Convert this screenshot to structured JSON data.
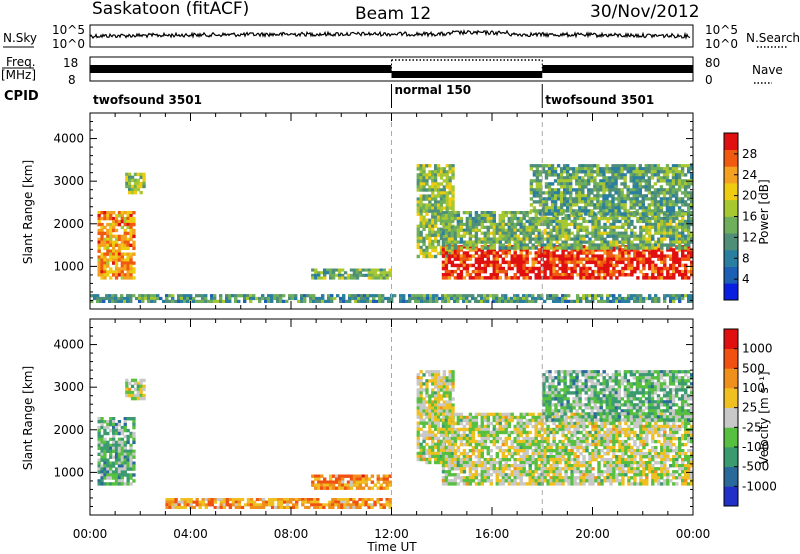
{
  "header": {
    "station": "Saskatoon (fitACF)",
    "beam": "Beam 12",
    "date": "30/Nov/2012"
  },
  "strip_labels": {
    "nsky": "N.Sky",
    "nsearch": "N.Search",
    "freq_top": "Freq.",
    "freq_unit": "[MHz]",
    "nave": "Nave",
    "cpid": "CPID",
    "noise_tick_high": "10^5",
    "noise_tick_low": "10^0",
    "freq_tick_high": "18",
    "freq_tick_low": "8",
    "nave_tick_high": "80",
    "nave_tick_low": "0"
  },
  "cpid_segments": [
    {
      "label": "twofsound 3501",
      "start_hour": 0,
      "end_hour": 12
    },
    {
      "label": "normal 150",
      "start_hour": 12,
      "end_hour": 18
    },
    {
      "label": "twofsound 3501",
      "start_hour": 18,
      "end_hour": 24
    }
  ],
  "chart_data": [
    {
      "type": "heatmap",
      "name": "power",
      "xlabel": "Time UT",
      "ylabel": "Slant Range [km]",
      "xlim": [
        0,
        24
      ],
      "ylim": [
        0,
        4600
      ],
      "x_ticks": [
        "00:00",
        "04:00",
        "08:00",
        "12:00",
        "16:00",
        "20:00",
        "00:00"
      ],
      "y_ticks": [
        1000,
        2000,
        3000,
        4000
      ],
      "colorbar": {
        "label": "Power [dB]",
        "ticks": [
          "4",
          "8",
          "12",
          "16",
          "20",
          "24",
          "28"
        ],
        "colors": [
          "#0a1ee0",
          "#1c5fb4",
          "#2a7fa0",
          "#4f8f78",
          "#6fae5a",
          "#a8c832",
          "#f0cc10",
          "#f4a020",
          "#f05a10",
          "#e01010"
        ]
      },
      "regions": [
        {
          "t0": 0.3,
          "t1": 1.8,
          "r0": 700,
          "r1": 2300,
          "level": 0.75
        },
        {
          "t0": 1.4,
          "t1": 2.2,
          "r0": 2700,
          "r1": 3200,
          "level": 0.55
        },
        {
          "t0": 8.8,
          "t1": 12.0,
          "r0": 700,
          "r1": 950,
          "level": 0.45
        },
        {
          "t0": 13.0,
          "t1": 14.5,
          "r0": 1200,
          "r1": 3400,
          "level": 0.5
        },
        {
          "t0": 14.0,
          "t1": 24.0,
          "r0": 700,
          "r1": 1500,
          "level": 0.92
        },
        {
          "t0": 14.0,
          "t1": 24.0,
          "r0": 1400,
          "r1": 2300,
          "level": 0.45
        },
        {
          "t0": 17.5,
          "t1": 24.0,
          "r0": 2200,
          "r1": 3400,
          "level": 0.4
        },
        {
          "t0": 0.0,
          "t1": 24.0,
          "r0": 150,
          "r1": 350,
          "level": 0.35
        }
      ]
    },
    {
      "type": "heatmap",
      "name": "velocity",
      "xlabel": "Time UT",
      "ylabel": "Slant Range [km]",
      "xlim": [
        0,
        24
      ],
      "ylim": [
        0,
        4600
      ],
      "x_ticks": [
        "00:00",
        "04:00",
        "08:00",
        "12:00",
        "16:00",
        "20:00",
        "00:00"
      ],
      "y_ticks": [
        1000,
        2000,
        3000,
        4000
      ],
      "colorbar": {
        "label": "Velocity [m s⁻¹]",
        "ticks": [
          "1000",
          "500",
          "100",
          "25",
          "-25",
          "-100",
          "-500",
          "-1000"
        ],
        "colors": [
          "#2030c8",
          "#2a6a9a",
          "#3a9a70",
          "#58c040",
          "#c8c8c8",
          "#f0c020",
          "#f0901c",
          "#f05010",
          "#e01010"
        ]
      },
      "regions": [
        {
          "t0": 0.3,
          "t1": 1.8,
          "r0": 700,
          "r1": 2300,
          "level": 0.35
        },
        {
          "t0": 1.4,
          "t1": 2.2,
          "r0": 2700,
          "r1": 3200,
          "level": 0.5
        },
        {
          "t0": 8.8,
          "t1": 12.0,
          "r0": 600,
          "r1": 950,
          "level": 0.72
        },
        {
          "t0": 13.0,
          "t1": 14.5,
          "r0": 1200,
          "r1": 3400,
          "level": 0.5
        },
        {
          "t0": 14.0,
          "t1": 24.0,
          "r0": 700,
          "r1": 2400,
          "level": 0.5
        },
        {
          "t0": 18.0,
          "t1": 24.0,
          "r0": 2200,
          "r1": 3400,
          "level": 0.38
        },
        {
          "t0": 3.0,
          "t1": 12.0,
          "r0": 150,
          "r1": 400,
          "level": 0.7
        }
      ]
    }
  ]
}
